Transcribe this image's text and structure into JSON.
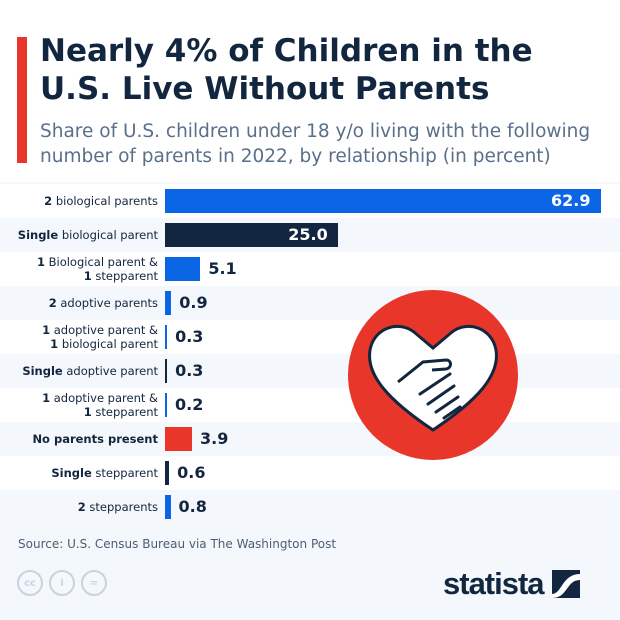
{
  "title": "Nearly 4% of Children in the U.S. Live Without Parents",
  "subtitle": "Share of U.S. children under 18 y/o living with the following number of parents in 2022, by relationship (in percent)",
  "source": "Source: U.S. Census Bureau via The Washington Post",
  "brand": "statista",
  "license_icons": [
    "cc-icon",
    "by-icon",
    "nd-icon"
  ],
  "colors": {
    "blue": "#0a66e4",
    "navy": "#13263f",
    "red": "#e8372a",
    "accent": "#e8372a"
  },
  "illustration": "heart-handshake-icon",
  "chart_data": {
    "type": "bar",
    "orientation": "horizontal",
    "categories": [
      [
        {
          "b": "2"
        },
        {
          "t": " biological parents"
        }
      ],
      [
        {
          "b": "Single"
        },
        {
          "t": " biological parent"
        }
      ],
      [
        {
          "b": "1"
        },
        {
          "t": " Biological parent &"
        },
        {
          "br": 1
        },
        {
          "b": "1"
        },
        {
          "t": " stepparent"
        }
      ],
      [
        {
          "b": "2"
        },
        {
          "t": " adoptive parents"
        }
      ],
      [
        {
          "b": "1"
        },
        {
          "t": " adoptive parent &"
        },
        {
          "br": 1
        },
        {
          "b": "1"
        },
        {
          "t": " biological parent"
        }
      ],
      [
        {
          "b": "Single"
        },
        {
          "t": " adoptive parent"
        }
      ],
      [
        {
          "b": "1"
        },
        {
          "t": " adoptive parent &"
        },
        {
          "br": 1
        },
        {
          "b": "1"
        },
        {
          "t": " stepparent"
        }
      ],
      [
        {
          "b": "No parents present"
        }
      ],
      [
        {
          "b": "Single"
        },
        {
          "t": " stepparent"
        }
      ],
      [
        {
          "b": "2"
        },
        {
          "t": " stepparents"
        }
      ]
    ],
    "values": [
      62.9,
      25.0,
      5.1,
      0.9,
      0.3,
      0.3,
      0.2,
      3.9,
      0.6,
      0.8
    ],
    "labels": [
      "62.9",
      "25.0",
      "5.1",
      "0.9",
      "0.3",
      "0.3",
      "0.2",
      "3.9",
      "0.6",
      "0.8"
    ],
    "bar_colors": [
      "blue",
      "navy",
      "blue",
      "blue",
      "blue",
      "navy",
      "blue",
      "red",
      "navy",
      "blue"
    ],
    "xlim": [
      0,
      62.9
    ],
    "grid": false,
    "legend": "none"
  }
}
